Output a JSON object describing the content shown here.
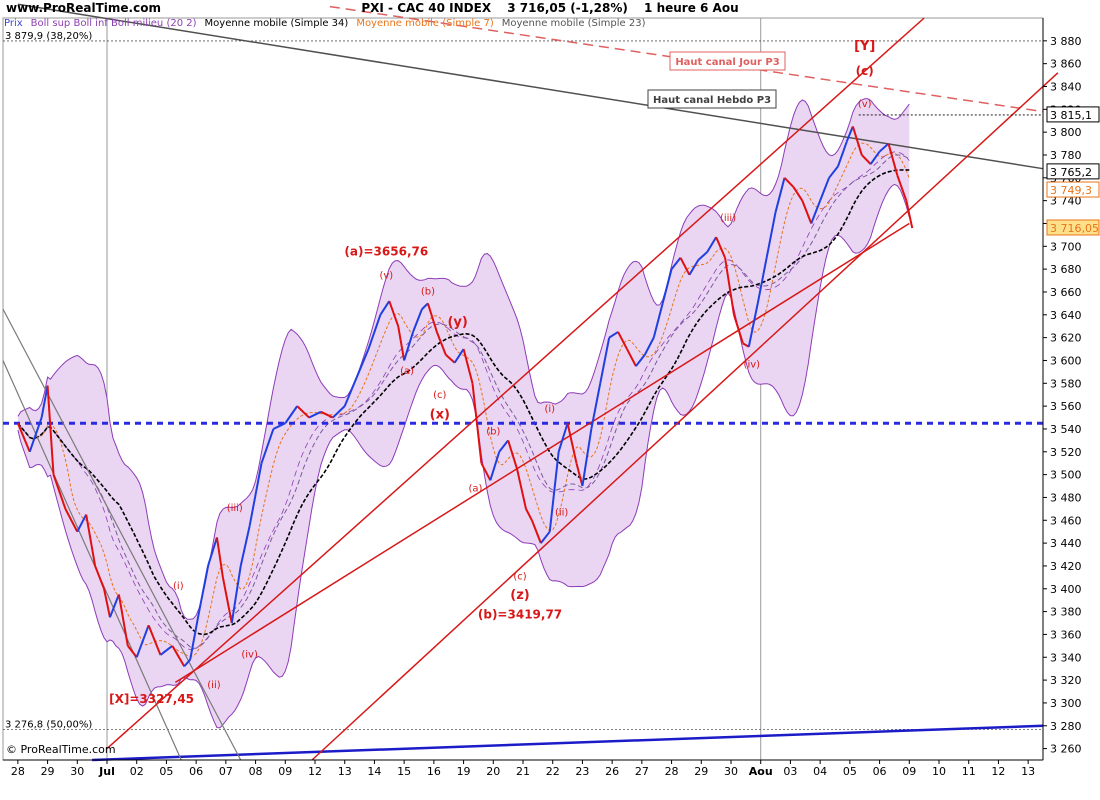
{
  "header": {
    "site": "www.ProRealTime.com",
    "ticker": "PXI - CAC 40 INDEX",
    "price": "3 716,05 (-1,28%)",
    "period": "1 heure  6 Aou"
  },
  "legend": [
    {
      "label": "Prix",
      "color": "#3b4ad6"
    },
    {
      "label": "Boll sup Boll inf Boll milieu (20 2)",
      "color": "#8e3fb5"
    },
    {
      "label": "Moyenne mobile (Simple 34)",
      "color": "#000000"
    },
    {
      "label": "Moyenne mobile (Simple 7)",
      "color": "#e8741a"
    },
    {
      "label": "Moyenne mobile (Simple 23)",
      "color": "#555555"
    }
  ],
  "copyright": "© ProRealTime.com",
  "colors": {
    "bull": "#1f3fe0",
    "bear": "#e01010",
    "channel": "#d81818",
    "band_fill": "#ead6f2",
    "band_line": "#8d3cb8",
    "sma34": "#000000",
    "sma7": "#e8741a",
    "sma23": "#7a5a9a",
    "support_blue": "#2a2adf",
    "trendline_gray": "#505050",
    "dashed_red": "#e06060"
  },
  "chart_data": {
    "type": "line",
    "y_axis": {
      "range": [
        3250,
        3900
      ],
      "ticks": [
        3260,
        3280,
        3300,
        3320,
        3340,
        3360,
        3380,
        3400,
        3420,
        3440,
        3460,
        3480,
        3500,
        3520,
        3540,
        3560,
        3580,
        3600,
        3620,
        3640,
        3660,
        3680,
        3700,
        3720,
        3740,
        3760,
        3780,
        3800,
        3820,
        3840,
        3860,
        3880
      ],
      "tick_labels": [
        "3 260",
        "3 280",
        "3 300",
        "3 320",
        "3 340",
        "3 360",
        "3 380",
        "3 400",
        "3 420",
        "3 440",
        "3 460",
        "3 480",
        "3 500",
        "3 520",
        "3 540",
        "3 560",
        "3 580",
        "3 600",
        "3 620",
        "3 640",
        "3 660",
        "3 680",
        "3 700",
        "3 720",
        "3 740",
        "3 760",
        "3 780",
        "3 800",
        "3 820",
        "3 840",
        "3 860",
        "3 880"
      ]
    },
    "x_axis": {
      "tick_labels": [
        "28",
        "29",
        "30",
        "Jul",
        "02",
        "05",
        "06",
        "07",
        "08",
        "09",
        "12",
        "13",
        "14",
        "15",
        "16",
        "19",
        "20",
        "21",
        "22",
        "23",
        "26",
        "27",
        "28",
        "29",
        "30",
        "Aou",
        "03",
        "04",
        "05",
        "06",
        "09",
        "10",
        "11",
        "12",
        "13"
      ],
      "month_markers": [
        "Jul",
        "Aou"
      ]
    },
    "series": [
      {
        "name": "Prix",
        "points": [
          [
            0.0,
            3545
          ],
          [
            0.4,
            3520
          ],
          [
            0.8,
            3550
          ],
          [
            1.0,
            3578
          ],
          [
            1.2,
            3500
          ],
          [
            1.6,
            3470
          ],
          [
            2.0,
            3450
          ],
          [
            2.3,
            3465
          ],
          [
            2.6,
            3420
          ],
          [
            2.9,
            3400
          ],
          [
            3.1,
            3375
          ],
          [
            3.4,
            3395
          ],
          [
            3.7,
            3350
          ],
          [
            4.0,
            3340
          ],
          [
            4.4,
            3368
          ],
          [
            4.8,
            3342
          ],
          [
            5.2,
            3350
          ],
          [
            5.6,
            3332
          ],
          [
            5.8,
            3338
          ],
          [
            6.1,
            3380
          ],
          [
            6.4,
            3420
          ],
          [
            6.7,
            3445
          ],
          [
            6.9,
            3410
          ],
          [
            7.2,
            3370
          ],
          [
            7.5,
            3420
          ],
          [
            7.8,
            3455
          ],
          [
            8.2,
            3510
          ],
          [
            8.6,
            3540
          ],
          [
            9.0,
            3545
          ],
          [
            9.4,
            3560
          ],
          [
            9.8,
            3550
          ],
          [
            10.2,
            3555
          ],
          [
            10.6,
            3550
          ],
          [
            11.0,
            3560
          ],
          [
            11.4,
            3585
          ],
          [
            11.8,
            3610
          ],
          [
            12.2,
            3640
          ],
          [
            12.5,
            3652
          ],
          [
            12.8,
            3630
          ],
          [
            13.0,
            3600
          ],
          [
            13.3,
            3625
          ],
          [
            13.6,
            3645
          ],
          [
            13.8,
            3650
          ],
          [
            14.1,
            3625
          ],
          [
            14.4,
            3605
          ],
          [
            14.7,
            3598
          ],
          [
            15.0,
            3610
          ],
          [
            15.3,
            3580
          ],
          [
            15.6,
            3510
          ],
          [
            15.9,
            3495
          ],
          [
            16.2,
            3520
          ],
          [
            16.5,
            3530
          ],
          [
            16.8,
            3505
          ],
          [
            17.1,
            3470
          ],
          [
            17.3,
            3460
          ],
          [
            17.6,
            3440
          ],
          [
            17.9,
            3450
          ],
          [
            18.2,
            3520
          ],
          [
            18.5,
            3545
          ],
          [
            18.8,
            3510
          ],
          [
            19.0,
            3490
          ],
          [
            19.3,
            3540
          ],
          [
            19.6,
            3580
          ],
          [
            19.9,
            3620
          ],
          [
            20.2,
            3625
          ],
          [
            20.5,
            3610
          ],
          [
            20.8,
            3595
          ],
          [
            21.1,
            3605
          ],
          [
            21.4,
            3620
          ],
          [
            21.7,
            3650
          ],
          [
            22.0,
            3680
          ],
          [
            22.3,
            3690
          ],
          [
            22.6,
            3675
          ],
          [
            22.9,
            3688
          ],
          [
            23.2,
            3695
          ],
          [
            23.5,
            3708
          ],
          [
            23.8,
            3690
          ],
          [
            24.1,
            3640
          ],
          [
            24.4,
            3615
          ],
          [
            24.6,
            3612
          ],
          [
            24.9,
            3650
          ],
          [
            25.2,
            3690
          ],
          [
            25.5,
            3730
          ],
          [
            25.8,
            3760
          ],
          [
            26.1,
            3752
          ],
          [
            26.4,
            3740
          ],
          [
            26.7,
            3720
          ],
          [
            27.0,
            3740
          ],
          [
            27.3,
            3760
          ],
          [
            27.6,
            3770
          ],
          [
            27.9,
            3792
          ],
          [
            28.1,
            3805
          ],
          [
            28.4,
            3780
          ],
          [
            28.7,
            3772
          ],
          [
            29.0,
            3783
          ],
          [
            29.3,
            3790
          ],
          [
            29.6,
            3762
          ],
          [
            29.9,
            3740
          ],
          [
            30.1,
            3716
          ]
        ]
      }
    ],
    "price_tags": [
      {
        "value": 3815.1,
        "label": "3 815,1",
        "color": "#000000"
      },
      {
        "value": 3765.2,
        "label": "3 765,2",
        "color": "#000000"
      },
      {
        "value": 3749.3,
        "label": "3 749,3",
        "color": "#e8741a"
      },
      {
        "value": 3716.05,
        "label": "3 716,05",
        "color": "#e87418"
      }
    ],
    "fib_levels": [
      {
        "value": 3879.9,
        "label": "3 879,9 (38,20%)"
      },
      {
        "value": 3276.8,
        "label": "3 276,8 (50,00%)"
      }
    ],
    "support_level": 3545,
    "trendline_labels": [
      {
        "text": "Haut canal Jour P3",
        "color": "#e06060"
      },
      {
        "text": "Haut canal Hebdo P3",
        "color": "#404040"
      }
    ],
    "annotations": [
      {
        "text": "[Y]",
        "x": 28.5,
        "y": 3872,
        "color": "#d81818",
        "size": 13
      },
      {
        "text": "(c)",
        "x": 28.5,
        "y": 3850,
        "color": "#d81818",
        "size": 12
      },
      {
        "text": "(v)",
        "x": 28.5,
        "y": 3822,
        "color": "#d81818",
        "size": 10
      },
      {
        "text": "(a)=3656,76",
        "x": 12.4,
        "y": 3692,
        "color": "#d81818",
        "size": 12
      },
      {
        "text": "(v)",
        "x": 12.4,
        "y": 3672,
        "color": "#d81818",
        "size": 10
      },
      {
        "text": "(b)",
        "x": 13.8,
        "y": 3658,
        "color": "#d81818",
        "size": 10
      },
      {
        "text": "(y)",
        "x": 14.8,
        "y": 3630,
        "color": "#d81818",
        "size": 13
      },
      {
        "text": "(a)",
        "x": 13.1,
        "y": 3588,
        "color": "#d81818",
        "size": 10
      },
      {
        "text": "(c)",
        "x": 14.2,
        "y": 3567,
        "color": "#d81818",
        "size": 10
      },
      {
        "text": "(x)",
        "x": 14.2,
        "y": 3549,
        "color": "#d81818",
        "size": 13
      },
      {
        "text": "(i)",
        "x": 17.9,
        "y": 3555,
        "color": "#d81818",
        "size": 10
      },
      {
        "text": "(b)",
        "x": 16.0,
        "y": 3535,
        "color": "#d81818",
        "size": 10
      },
      {
        "text": "(a)",
        "x": 15.4,
        "y": 3485,
        "color": "#d81818",
        "size": 10
      },
      {
        "text": "(ii)",
        "x": 18.3,
        "y": 3464,
        "color": "#d81818",
        "size": 10
      },
      {
        "text": "(c)",
        "x": 16.9,
        "y": 3408,
        "color": "#d81818",
        "size": 10
      },
      {
        "text": "(z)",
        "x": 16.9,
        "y": 3391,
        "color": "#d81818",
        "size": 13
      },
      {
        "text": "(b)=3419,77",
        "x": 16.9,
        "y": 3374,
        "color": "#d81818",
        "size": 12
      },
      {
        "text": "(iii)",
        "x": 23.9,
        "y": 3722,
        "color": "#d81818",
        "size": 10
      },
      {
        "text": "(iv)",
        "x": 24.7,
        "y": 3594,
        "color": "#d81818",
        "size": 10
      },
      {
        "text": "(iii)",
        "x": 7.3,
        "y": 3468,
        "color": "#d81818",
        "size": 10
      },
      {
        "text": "(i)",
        "x": 5.4,
        "y": 3400,
        "color": "#d81818",
        "size": 10
      },
      {
        "text": "(iv)",
        "x": 7.8,
        "y": 3340,
        "color": "#d81818",
        "size": 10
      },
      {
        "text": "(ii)",
        "x": 6.6,
        "y": 3313,
        "color": "#d81818",
        "size": 10
      },
      {
        "text": "[X]=3327,45",
        "x": 4.5,
        "y": 3300,
        "color": "#d81818",
        "size": 12
      }
    ]
  }
}
